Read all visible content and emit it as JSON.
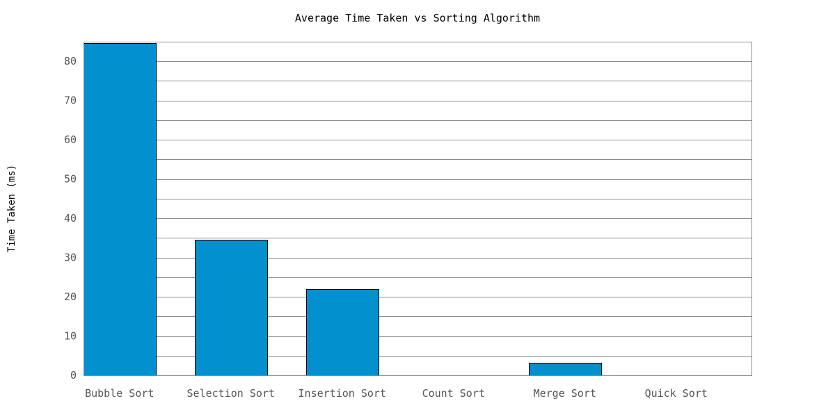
{
  "chart_data": {
    "type": "bar",
    "title": "Average Time Taken vs Sorting Algorithm",
    "xlabel": "",
    "ylabel": "Time Taken (ms)",
    "categories": [
      "Bubble Sort",
      "Selection Sort",
      "Insertion Sort",
      "Count Sort",
      "Merge Sort",
      "Quick Sort"
    ],
    "values": [
      84.6,
      34.5,
      22.0,
      0,
      3.2,
      0
    ],
    "ylim": [
      0,
      85
    ],
    "yticks": [
      0,
      10,
      20,
      30,
      40,
      50,
      60,
      70,
      80
    ],
    "ytick_labels": [
      "0",
      "10",
      "20",
      "30",
      "40",
      "50",
      "60",
      "70",
      "80"
    ],
    "minor_grid_step": 5,
    "grid": true,
    "legend": "none",
    "colors": {
      "bar": "#0290cf",
      "bar_border": "#000000",
      "grid": "#8c8c8c",
      "tick_text": "#555555"
    }
  }
}
